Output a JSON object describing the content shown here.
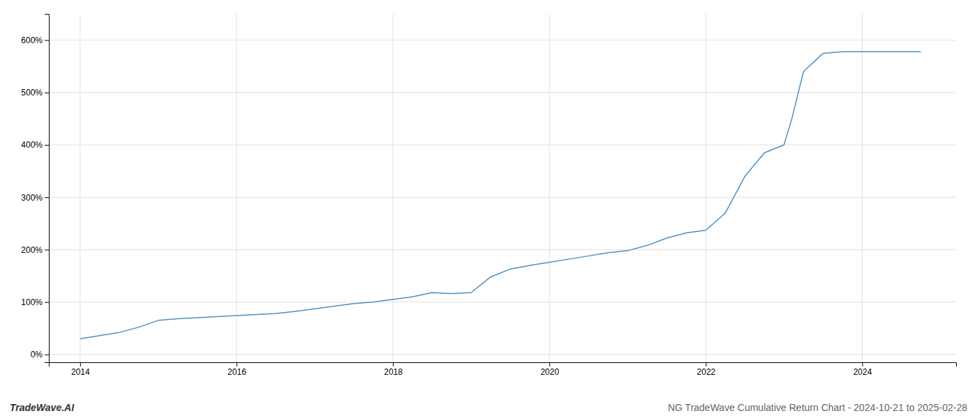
{
  "chart_data": {
    "type": "line",
    "x": [
      2014.0,
      2014.25,
      2014.5,
      2014.75,
      2015.0,
      2015.25,
      2015.5,
      2015.75,
      2016.0,
      2016.25,
      2016.5,
      2016.75,
      2017.0,
      2017.25,
      2017.5,
      2017.75,
      2018.0,
      2018.25,
      2018.5,
      2018.75,
      2019.0,
      2019.25,
      2019.5,
      2019.75,
      2020.0,
      2020.25,
      2020.5,
      2020.75,
      2021.0,
      2021.25,
      2021.5,
      2021.75,
      2022.0,
      2022.25,
      2022.5,
      2022.75,
      2023.0,
      2023.1,
      2023.25,
      2023.5,
      2023.75,
      2024.0,
      2024.25,
      2024.5,
      2024.75
    ],
    "values": [
      30,
      36,
      42,
      52,
      65,
      68,
      70,
      72,
      74,
      76,
      78,
      82,
      87,
      92,
      97,
      100,
      105,
      110,
      118,
      116,
      118,
      148,
      163,
      170,
      176,
      182,
      188,
      194,
      198,
      208,
      222,
      232,
      237,
      270,
      340,
      385,
      400,
      450,
      540,
      575,
      578,
      578,
      578,
      578,
      578
    ],
    "color": "#4a90c4",
    "xlim": [
      2013.6,
      2025.2
    ],
    "xticks": [
      2014,
      2016,
      2018,
      2020,
      2022,
      2024
    ],
    "ylim": [
      -15,
      650
    ],
    "yticks": [
      {
        "value": 0,
        "label": "0%"
      },
      {
        "value": 100,
        "label": "100%"
      },
      {
        "value": 200,
        "label": "200%"
      },
      {
        "value": 300,
        "label": "300%"
      },
      {
        "value": 400,
        "label": "400%"
      },
      {
        "value": 500,
        "label": "500%"
      },
      {
        "value": 600,
        "label": "600%"
      }
    ],
    "grid": true,
    "annotations": [
      "TradeWave.AI",
      "NG TradeWave Cumulative Return Chart - 2024-10-21 to 2025-02-28"
    ]
  }
}
